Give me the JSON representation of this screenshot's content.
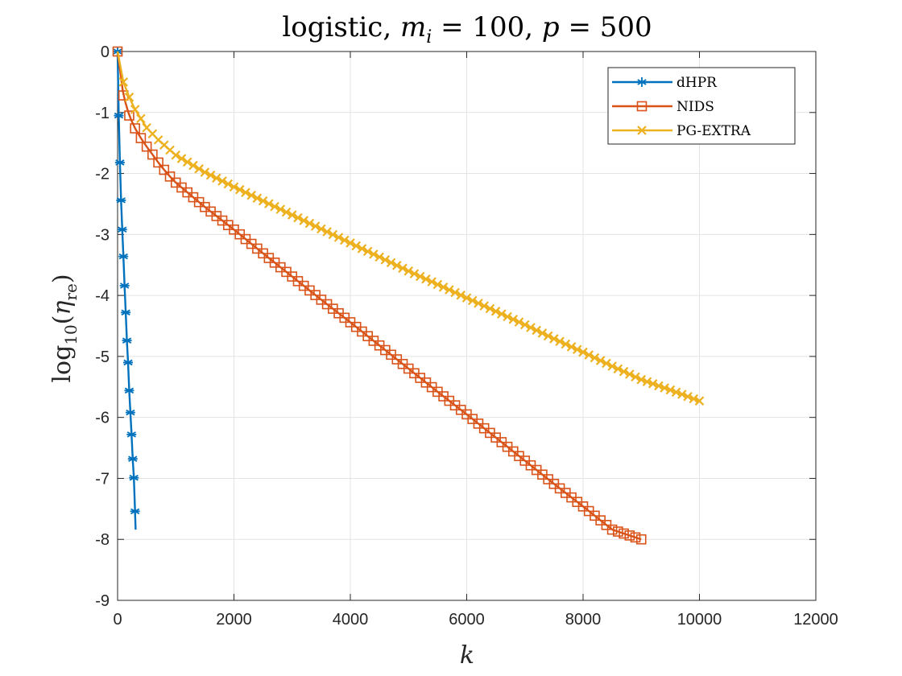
{
  "chart_data": {
    "type": "line",
    "title": "logistic, m_i = 100, p = 500",
    "title_parts": [
      "logistic, ",
      "m",
      "i",
      " = 100, ",
      "p",
      " = 500"
    ],
    "xlabel": "k",
    "ylabel_parts": [
      "log",
      "10",
      "(",
      "η",
      "re",
      ")"
    ],
    "xlim": [
      0,
      12000
    ],
    "ylim": [
      -9,
      0
    ],
    "xticks": [
      0,
      2000,
      4000,
      6000,
      8000,
      10000,
      12000
    ],
    "xtick_labels": [
      "0",
      "2000",
      "4000",
      "6000",
      "8000",
      "10000",
      "12000"
    ],
    "yticks": [
      0,
      -1,
      -2,
      -3,
      -4,
      -5,
      -6,
      -7,
      -8,
      -9
    ],
    "ytick_labels": [
      "0",
      "-1",
      "-2",
      "-3",
      "-4",
      "-5",
      "-6",
      "-7",
      "-8",
      "-9"
    ],
    "grid": true,
    "legend_position": "top-right",
    "series": [
      {
        "name": "dHPR",
        "color": "#0072BD",
        "marker": "asterisk",
        "x": [
          0,
          20,
          40,
          60,
          80,
          100,
          120,
          140,
          160,
          180,
          200,
          220,
          240,
          260,
          280,
          300,
          310
        ],
        "y": [
          0,
          -1.05,
          -1.82,
          -2.44,
          -2.92,
          -3.36,
          -3.84,
          -4.28,
          -4.74,
          -5.1,
          -5.56,
          -5.92,
          -6.28,
          -6.68,
          -6.99,
          -7.54,
          -7.84
        ]
      },
      {
        "name": "NIDS",
        "color": "#D95319",
        "marker": "square",
        "x": [
          0,
          100,
          200,
          300,
          400,
          500,
          600,
          700,
          800,
          900,
          1000,
          1500,
          2000,
          2500,
          3000,
          3500,
          4000,
          4500,
          5000,
          5500,
          6000,
          6500,
          7000,
          7500,
          8000,
          8500,
          9000
        ],
        "y": [
          0,
          -0.72,
          -1.05,
          -1.26,
          -1.42,
          -1.56,
          -1.69,
          -1.82,
          -1.94,
          -2.05,
          -2.15,
          -2.55,
          -2.92,
          -3.31,
          -3.69,
          -4.07,
          -4.44,
          -4.82,
          -5.2,
          -5.58,
          -5.95,
          -6.33,
          -6.71,
          -7.09,
          -7.46,
          -7.84,
          -8.0
        ]
      },
      {
        "name": "PG-EXTRA",
        "color": "#EDB120",
        "marker": "x",
        "x": [
          0,
          100,
          200,
          300,
          500,
          700,
          1000,
          1500,
          2000,
          2500,
          3000,
          3500,
          4000,
          4500,
          5000,
          5500,
          6000,
          6500,
          7000,
          7500,
          8000,
          8500,
          9000,
          9500,
          10000
        ],
        "y": [
          0,
          -0.5,
          -0.75,
          -0.95,
          -1.25,
          -1.45,
          -1.7,
          -1.98,
          -2.22,
          -2.45,
          -2.68,
          -2.91,
          -3.14,
          -3.37,
          -3.6,
          -3.82,
          -4.04,
          -4.26,
          -4.48,
          -4.71,
          -4.93,
          -5.16,
          -5.38,
          -5.55,
          -5.73
        ]
      }
    ]
  }
}
